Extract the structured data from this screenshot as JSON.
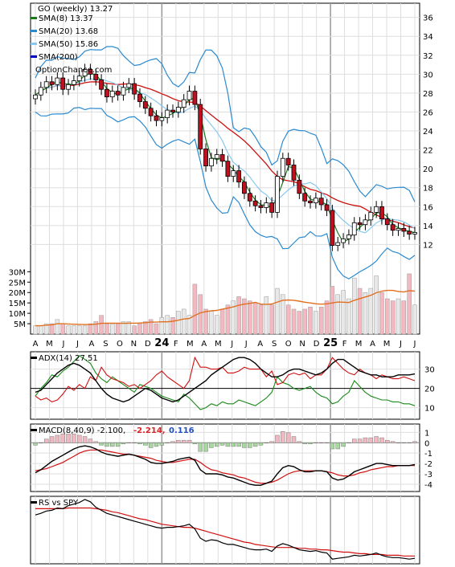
{
  "chart_data": {
    "type": "line",
    "x_labels": [
      "A",
      "M",
      "J",
      "J",
      "A",
      "S",
      "O",
      "N",
      "D",
      "24",
      "F",
      "M",
      "A",
      "M",
      "J",
      "J",
      "A",
      "S",
      "O",
      "N",
      "D",
      "25",
      "F",
      "M",
      "A",
      "M",
      "J",
      "J"
    ],
    "price_panel": {
      "title": "GO (weekly) 13.27",
      "watermark": "OptionChance.com",
      "legend": [
        {
          "label": "SMA(8) 13.37",
          "color": "#1a7a1a"
        },
        {
          "label": "SMA(20) 13.68",
          "color": "#2a8ad0"
        },
        {
          "label": "SMA(50) 15.86",
          "color": "#88c8f0"
        },
        {
          "label": "SMA(200)",
          "color": "#0000c0"
        }
      ],
      "yticks": [
        12,
        14,
        16,
        18,
        20,
        22,
        24,
        26,
        28,
        30,
        32,
        34,
        36
      ],
      "ylim": [
        10,
        37.5
      ],
      "close": [
        27.8,
        28.6,
        29.2,
        28.9,
        29.6,
        28.4,
        28.9,
        29.3,
        29.8,
        30.5,
        30.0,
        29.4,
        28.4,
        27.6,
        28.2,
        27.8,
        28.6,
        29.0,
        27.9,
        27.1,
        26.4,
        25.6,
        25.1,
        25.4,
        26.2,
        26.0,
        26.5,
        27.3,
        28.2,
        26.8,
        22.1,
        20.3,
        21.1,
        21.5,
        20.8,
        19.2,
        19.8,
        18.6,
        17.4,
        16.6,
        16.1,
        15.9,
        16.4,
        15.4,
        19.2,
        21.1,
        20.4,
        18.8,
        17.4,
        16.6,
        16.4,
        16.9,
        16.2,
        15.6,
        11.9,
        12.2,
        12.6,
        13.0,
        14.3,
        14.1,
        14.6,
        15.4,
        16.0,
        14.7,
        14.1,
        13.5,
        13.7,
        13.4,
        13.1,
        13.27
      ],
      "sma8_label": "SMA(8) 13.37",
      "sma20_label": "SMA(20) 13.68",
      "sma50_label": "SMA(50) 15.86",
      "sma200_label": "SMA(200)"
    },
    "volume_panel": {
      "yticks": [
        "5M",
        "10M",
        "15M",
        "20M",
        "25M",
        "30M"
      ],
      "ytick_values": [
        5,
        10,
        15,
        20,
        25,
        30
      ],
      "ylim": [
        0,
        34
      ],
      "unit": "M",
      "values": [
        4,
        4,
        5,
        5,
        7,
        5,
        4,
        4,
        4,
        4,
        5,
        6,
        9,
        5,
        5,
        5,
        6,
        6,
        4,
        5,
        6,
        7,
        5,
        8,
        9,
        8,
        11,
        12,
        9,
        24,
        19,
        12,
        11,
        9,
        12,
        14,
        16,
        18,
        17,
        16,
        15,
        14,
        18,
        14,
        22,
        19,
        14,
        12,
        11,
        12,
        13,
        11,
        13,
        16,
        23,
        19,
        21,
        17,
        27,
        22,
        20,
        22,
        28,
        20,
        17,
        16,
        17,
        16,
        29,
        14
      ]
    },
    "adx_panel": {
      "title": "ADX(14) 27.51",
      "yticks": [
        10,
        20,
        30
      ],
      "ylim": [
        4,
        39
      ],
      "adx": [
        18,
        19,
        22,
        25,
        28,
        30,
        32,
        33,
        32,
        30,
        28,
        24,
        20,
        17,
        15,
        14,
        13,
        14,
        16,
        18,
        20,
        19,
        17,
        15,
        14,
        13,
        14,
        16,
        18,
        20,
        22,
        24,
        27,
        29,
        31,
        33,
        35,
        36,
        36,
        35,
        33,
        30,
        28,
        26,
        26,
        27,
        29,
        30,
        30,
        29,
        28,
        27,
        28,
        30,
        33,
        35,
        35,
        33,
        31,
        29,
        28,
        27,
        27,
        26,
        26,
        26,
        27,
        27,
        27,
        27.5
      ],
      "plus_di": [
        16,
        20,
        23,
        27,
        26,
        29,
        31,
        34,
        37,
        35,
        33,
        28,
        25,
        23,
        26,
        24,
        22,
        20,
        18,
        22,
        21,
        20,
        18,
        16,
        15,
        14,
        13,
        17,
        15,
        12,
        9,
        10,
        12,
        11,
        13,
        12,
        12,
        14,
        13,
        12,
        11,
        13,
        15,
        18,
        26,
        23,
        22,
        20,
        19,
        20,
        21,
        18,
        16,
        15,
        12,
        13,
        16,
        18,
        24,
        21,
        18,
        16,
        15,
        14,
        14,
        13,
        13,
        12,
        12,
        11
      ],
      "minus_di": [
        16,
        14,
        15,
        13,
        14,
        17,
        21,
        19,
        22,
        20,
        26,
        24,
        31,
        27,
        25,
        24,
        23,
        21,
        22,
        20,
        22,
        24,
        27,
        29,
        26,
        24,
        22,
        20,
        24,
        36,
        31,
        31,
        30,
        30,
        31,
        28,
        28,
        29,
        31,
        30,
        30,
        30,
        26,
        29,
        22,
        23,
        27,
        28,
        27,
        28,
        25,
        27,
        27,
        30,
        36,
        33,
        30,
        28,
        27,
        30,
        28,
        27,
        25,
        27,
        26,
        25,
        25,
        26,
        25,
        24
      ]
    },
    "macd_panel": {
      "title": "MACD(8,40,9) -2.100,",
      "macd_label": "-2.214,",
      "hist_label": "0.116",
      "yticks": [
        1,
        0,
        -1,
        -2,
        -3,
        -4
      ],
      "ylim": [
        -4.7,
        1.8
      ],
      "macd": [
        -2.9,
        -2.6,
        -2.2,
        -1.8,
        -1.5,
        -1.2,
        -0.9,
        -0.6,
        -0.4,
        -0.3,
        -0.4,
        -0.6,
        -0.9,
        -1.1,
        -1.2,
        -1.3,
        -1.2,
        -1.1,
        -1.2,
        -1.4,
        -1.6,
        -1.9,
        -2.0,
        -2.0,
        -1.9,
        -1.8,
        -1.6,
        -1.5,
        -1.4,
        -1.7,
        -2.6,
        -3.0,
        -3.0,
        -3.0,
        -3.1,
        -3.3,
        -3.4,
        -3.6,
        -3.8,
        -4.0,
        -4.1,
        -4.1,
        -3.9,
        -3.7,
        -3.0,
        -2.4,
        -2.2,
        -2.3,
        -2.6,
        -2.8,
        -2.8,
        -2.7,
        -2.7,
        -2.8,
        -3.4,
        -3.6,
        -3.5,
        -3.2,
        -2.8,
        -2.6,
        -2.4,
        -2.2,
        -2.0,
        -2.0,
        -2.1,
        -2.2,
        -2.2,
        -2.2,
        -2.2,
        -2.1
      ],
      "signal": [
        -2.7,
        -2.6,
        -2.5,
        -2.3,
        -2.1,
        -1.9,
        -1.6,
        -1.3,
        -1.0,
        -0.8,
        -0.7,
        -0.7,
        -0.7,
        -0.8,
        -0.9,
        -1.0,
        -1.1,
        -1.1,
        -1.2,
        -1.3,
        -1.4,
        -1.5,
        -1.7,
        -1.8,
        -1.9,
        -1.9,
        -1.8,
        -1.7,
        -1.6,
        -1.6,
        -1.9,
        -2.3,
        -2.6,
        -2.7,
        -2.9,
        -3.0,
        -3.1,
        -3.3,
        -3.4,
        -3.6,
        -3.8,
        -3.9,
        -3.9,
        -3.8,
        -3.6,
        -3.3,
        -3.0,
        -2.8,
        -2.7,
        -2.7,
        -2.7,
        -2.7,
        -2.7,
        -2.8,
        -2.9,
        -3.1,
        -3.2,
        -3.2,
        -3.1,
        -2.9,
        -2.8,
        -2.6,
        -2.5,
        -2.4,
        -2.3,
        -2.3,
        -2.2,
        -2.2,
        -2.2,
        -2.2
      ]
    },
    "rs_panel": {
      "title": "RS vs SPY",
      "rs": [
        0.78,
        0.8,
        0.83,
        0.84,
        0.87,
        0.86,
        0.9,
        0.92,
        0.94,
        0.98,
        0.95,
        0.88,
        0.84,
        0.8,
        0.78,
        0.76,
        0.74,
        0.72,
        0.7,
        0.68,
        0.66,
        0.64,
        0.62,
        0.61,
        0.62,
        0.62,
        0.63,
        0.64,
        0.66,
        0.6,
        0.48,
        0.44,
        0.46,
        0.45,
        0.42,
        0.4,
        0.4,
        0.38,
        0.36,
        0.34,
        0.33,
        0.33,
        0.34,
        0.31,
        0.38,
        0.41,
        0.39,
        0.36,
        0.33,
        0.32,
        0.31,
        0.32,
        0.3,
        0.29,
        0.21,
        0.22,
        0.23,
        0.24,
        0.26,
        0.25,
        0.26,
        0.27,
        0.29,
        0.26,
        0.24,
        0.23,
        0.23,
        0.22,
        0.21,
        0.22
      ],
      "rs_ma": [
        0.86,
        0.86,
        0.86,
        0.86,
        0.86,
        0.86,
        0.87,
        0.87,
        0.87,
        0.87,
        0.87,
        0.86,
        0.85,
        0.84,
        0.82,
        0.81,
        0.79,
        0.77,
        0.75,
        0.73,
        0.72,
        0.7,
        0.68,
        0.66,
        0.65,
        0.64,
        0.63,
        0.62,
        0.62,
        0.61,
        0.59,
        0.57,
        0.55,
        0.53,
        0.51,
        0.49,
        0.47,
        0.45,
        0.43,
        0.42,
        0.4,
        0.39,
        0.38,
        0.37,
        0.36,
        0.36,
        0.36,
        0.36,
        0.35,
        0.35,
        0.34,
        0.34,
        0.33,
        0.33,
        0.32,
        0.31,
        0.3,
        0.3,
        0.29,
        0.28,
        0.28,
        0.27,
        0.27,
        0.27,
        0.26,
        0.26,
        0.26,
        0.25,
        0.25,
        0.25
      ]
    }
  }
}
